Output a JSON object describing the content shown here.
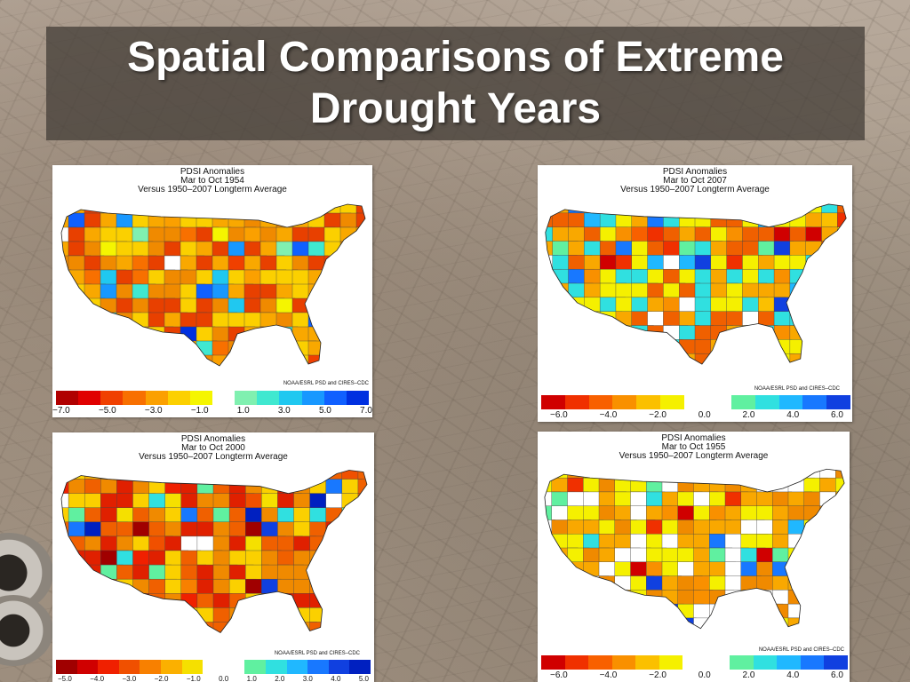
{
  "slide": {
    "title": "Spatial Comparisons of Extreme Drought Years"
  },
  "legend_colors_11": [
    "#c00000",
    "#e41a00",
    "#f05a00",
    "#f99100",
    "#fbc01a",
    "#f5f000",
    "#ffffff",
    "#60f0b0",
    "#30e0e0",
    "#1fb0ff",
    "#1a70ff",
    "#1030e0"
  ],
  "maps": [
    {
      "id": "1954",
      "title_line1": "PDSI Anomalies",
      "title_line2": "Mar to Oct 1954",
      "title_line3": "Versus 1950–2007 Longterm Average",
      "credit": "NOAA/ESRL PSD and CIRES–CDC",
      "colorbar": [
        "#b00000",
        "#e00000",
        "#f04000",
        "#f87000",
        "#fba000",
        "#fcd000",
        "#f5f500",
        "#ffffff",
        "#80f0b0",
        "#40e8d0",
        "#20c8f0",
        "#1898ff",
        "#1060ff",
        "#0030e0"
      ],
      "ticks": [
        "−7.0",
        "−5.0",
        "−3.0",
        "−1.0",
        "1.0",
        "3.0",
        "5.0",
        "7.0"
      ],
      "dominant": [
        "#f08a00",
        "#f9a800",
        "#e84000",
        "#fbd000"
      ]
    },
    {
      "id": "2007",
      "title_line1": "PDSI Anomalies",
      "title_line2": "Mar to Oct 2007",
      "title_line3": "Versus 1950–2007 Longterm Average",
      "credit": "NOAA/ESRL PSD and CIRES–CDC",
      "colorbar": [
        "#d00000",
        "#f03000",
        "#f86000",
        "#f99000",
        "#fbc000",
        "#f5f000",
        "#ffffff",
        "#ffffff",
        "#60f0a0",
        "#30e0e0",
        "#20b8ff",
        "#1878ff",
        "#1040e0"
      ],
      "ticks": [
        "−6.0",
        "−4.0",
        "−2.0",
        "0.0",
        "2.0",
        "4.0",
        "6.0"
      ],
      "dominant": [
        "#f9a800",
        "#f5f000",
        "#30e0e0",
        "#f06000"
      ]
    },
    {
      "id": "2000",
      "title_line1": "PDSI Anomalies",
      "title_line2": "Mar to Oct 2000",
      "title_line3": "Versus 1950–2007 Longterm Average",
      "credit": "NOAA/ESRL PSD and CIRES–CDC",
      "colorbar": [
        "#a00000",
        "#d00000",
        "#f02000",
        "#f05000",
        "#f88000",
        "#fbb000",
        "#f5e000",
        "#ffffff",
        "#ffffff",
        "#60f0a0",
        "#30e0e0",
        "#20b8ff",
        "#1878ff",
        "#1040e0",
        "#0020c0"
      ],
      "ticks": [
        "−5.0",
        "−4.0",
        "−3.0",
        "−2.0",
        "−1.0",
        "0.0",
        "1.0",
        "2.0",
        "3.0",
        "4.0",
        "5.0"
      ],
      "dominant": [
        "#f06000",
        "#f08a00",
        "#e02000",
        "#fbd000"
      ]
    },
    {
      "id": "1955",
      "title_line1": "PDSI Anomalies",
      "title_line2": "Mar to Oct 1955",
      "title_line3": "Versus 1950–2007 Longterm Average",
      "credit": "NOAA/ESRL PSD and CIRES–CDC",
      "colorbar": [
        "#d00000",
        "#f03000",
        "#f86000",
        "#f99000",
        "#fbc000",
        "#f5f000",
        "#ffffff",
        "#ffffff",
        "#60f0a0",
        "#30e0e0",
        "#20b8ff",
        "#1878ff",
        "#1040e0"
      ],
      "ticks": [
        "−6.0",
        "−4.0",
        "−2.0",
        "0.0",
        "2.0",
        "4.0",
        "6.0"
      ],
      "dominant": [
        "#f9a800",
        "#f08a00",
        "#ffffff",
        "#f5f000"
      ]
    }
  ]
}
